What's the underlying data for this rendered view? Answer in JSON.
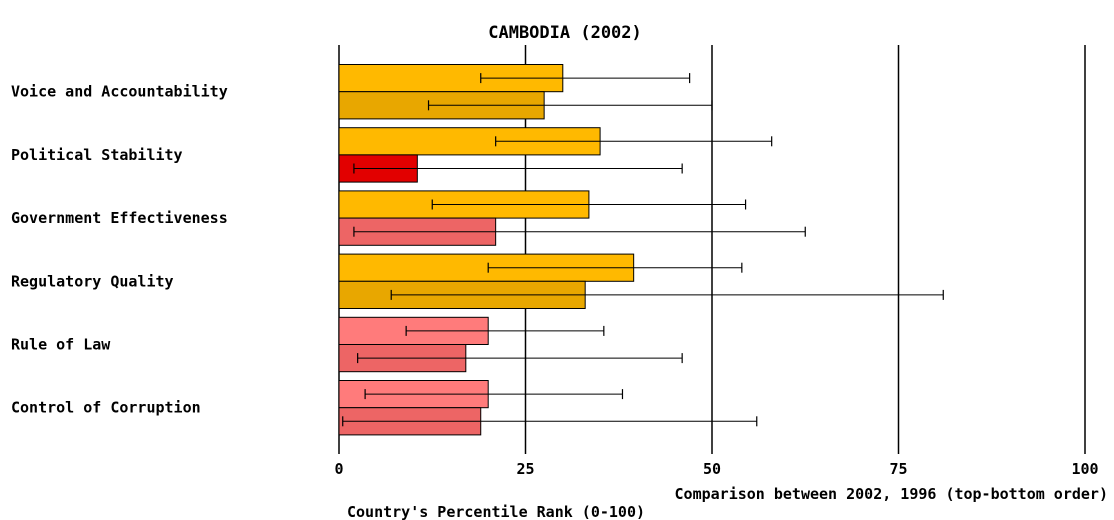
{
  "chart_data": {
    "type": "bar",
    "orientation": "horizontal",
    "title": "CAMBODIA (2002)",
    "xlabel_line1": "Comparison between 2002, 1996 (top-bottom order)",
    "xlabel_line2": "Country's Percentile Rank (0-100)",
    "xlim": [
      0,
      100
    ],
    "xticks": [
      "0",
      "25",
      "50",
      "75",
      "100"
    ],
    "grid": "vertical lines at 25, 50, 75",
    "categories": [
      "Voice and Accountability",
      "Political Stability",
      "Government Effectiveness",
      "Regulatory Quality",
      "Rule of Law",
      "Control of Corruption"
    ],
    "series": [
      {
        "values": [
          30,
          35,
          33.5,
          39.5,
          20,
          20
        ],
        "error_low": [
          19,
          21,
          12.5,
          20,
          9,
          3.5
        ],
        "error_high": [
          47,
          58,
          54.5,
          54,
          35.5,
          38
        ],
        "colors": [
          "#ffb900",
          "#ffb900",
          "#ffb900",
          "#ffb900",
          "#ff7b7b",
          "#ff7b7b"
        ]
      },
      {
        "values": [
          27.5,
          10.5,
          21,
          33,
          17,
          19
        ],
        "error_low": [
          12,
          2,
          2,
          7,
          2.5,
          0.5
        ],
        "error_high": [
          50,
          46,
          62.5,
          81,
          46,
          56
        ],
        "colors": [
          "#e8a700",
          "#e20000",
          "#ed6565",
          "#e8a700",
          "#ed6565",
          "#ed6565"
        ]
      }
    ]
  }
}
